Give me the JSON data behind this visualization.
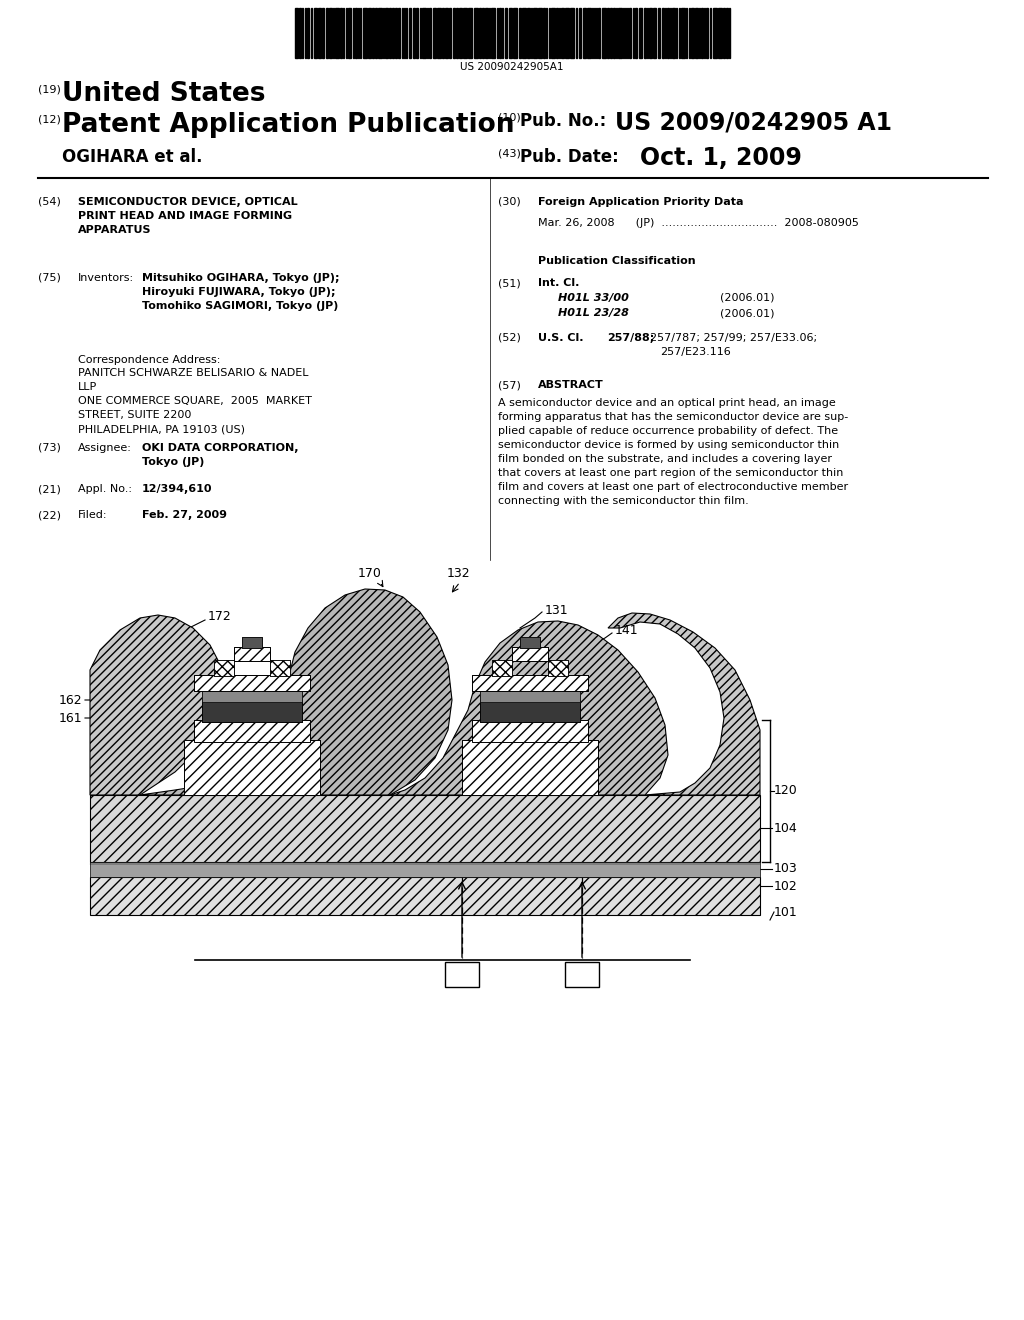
{
  "background_color": "#ffffff",
  "barcode_text": "US 20090242905A1",
  "header": {
    "number_19": "(19)",
    "united_states": "United States",
    "number_12": "(12)",
    "pat_app_pub": "Patent Application Publication",
    "number_10": "(10)",
    "pub_no_label": "Pub. No.:",
    "pub_no_value": "US 2009/0242905 A1",
    "applicant": "OGIHARA et al.",
    "number_43": "(43)",
    "pub_date_label": "Pub. Date:",
    "pub_date_value": "Oct. 1, 2009"
  },
  "left_col": {
    "field54_num": "(54)",
    "field54_title": "SEMICONDUCTOR DEVICE, OPTICAL\nPRINT HEAD AND IMAGE FORMING\nAPPARATUS",
    "field75_num": "(75)",
    "field75_label": "Inventors:",
    "field75_value": "Mitsuhiko OGIHARA, Tokyo (JP);\nHiroyuki FUJIWARA, Tokyo (JP);\nTomohiko SAGIMORI, Tokyo (JP)",
    "corr_label": "Correspondence Address:",
    "corr_value": "PANITCH SCHWARZE BELISARIO & NADEL\nLLP\nONE COMMERCE SQUARE,  2005  MARKET\nSTREET, SUITE 2200\nPHILADELPHIA, PA 19103 (US)",
    "field73_num": "(73)",
    "field73_label": "Assignee:",
    "field73_value": "OKI DATA CORPORATION,\nTokyo (JP)",
    "field21_num": "(21)",
    "field21_label": "Appl. No.:",
    "field21_value": "12/394,610",
    "field22_num": "(22)",
    "field22_label": "Filed:",
    "field22_value": "Feb. 27, 2009"
  },
  "right_col": {
    "field30_num": "(30)",
    "field30_title": "Foreign Application Priority Data",
    "field30_entry": "Mar. 26, 2008      (JP)  ................................  2008-080905",
    "pub_class_title": "Publication Classification",
    "field51_num": "(51)",
    "field51_label": "Int. Cl.",
    "field51_value1": "H01L 33/00",
    "field51_year1": "(2006.01)",
    "field51_value2": "H01L 23/28",
    "field51_year2": "(2006.01)",
    "field52_num": "(52)",
    "field52_label": "U.S. Cl.",
    "field52_value1": "257/88; 257/787; 257/99; 257/E33.06;",
    "field52_value2": "257/E23.116",
    "field57_num": "(57)",
    "field57_title": "ABSTRACT",
    "abstract_text": "A semiconductor device and an optical print head, an image\nforming apparatus that has the semiconductor device are sup-\nplied capable of reduce occurrence probability of defect. The\nsemiconductor device is formed by using semiconductor thin\nfilm bonded on the substrate, and includes a covering layer\nthat covers at least one part region of the semiconductor thin\nfilm and covers at least one part of electroconductive member\nconnecting with the semiconductor thin film."
  }
}
